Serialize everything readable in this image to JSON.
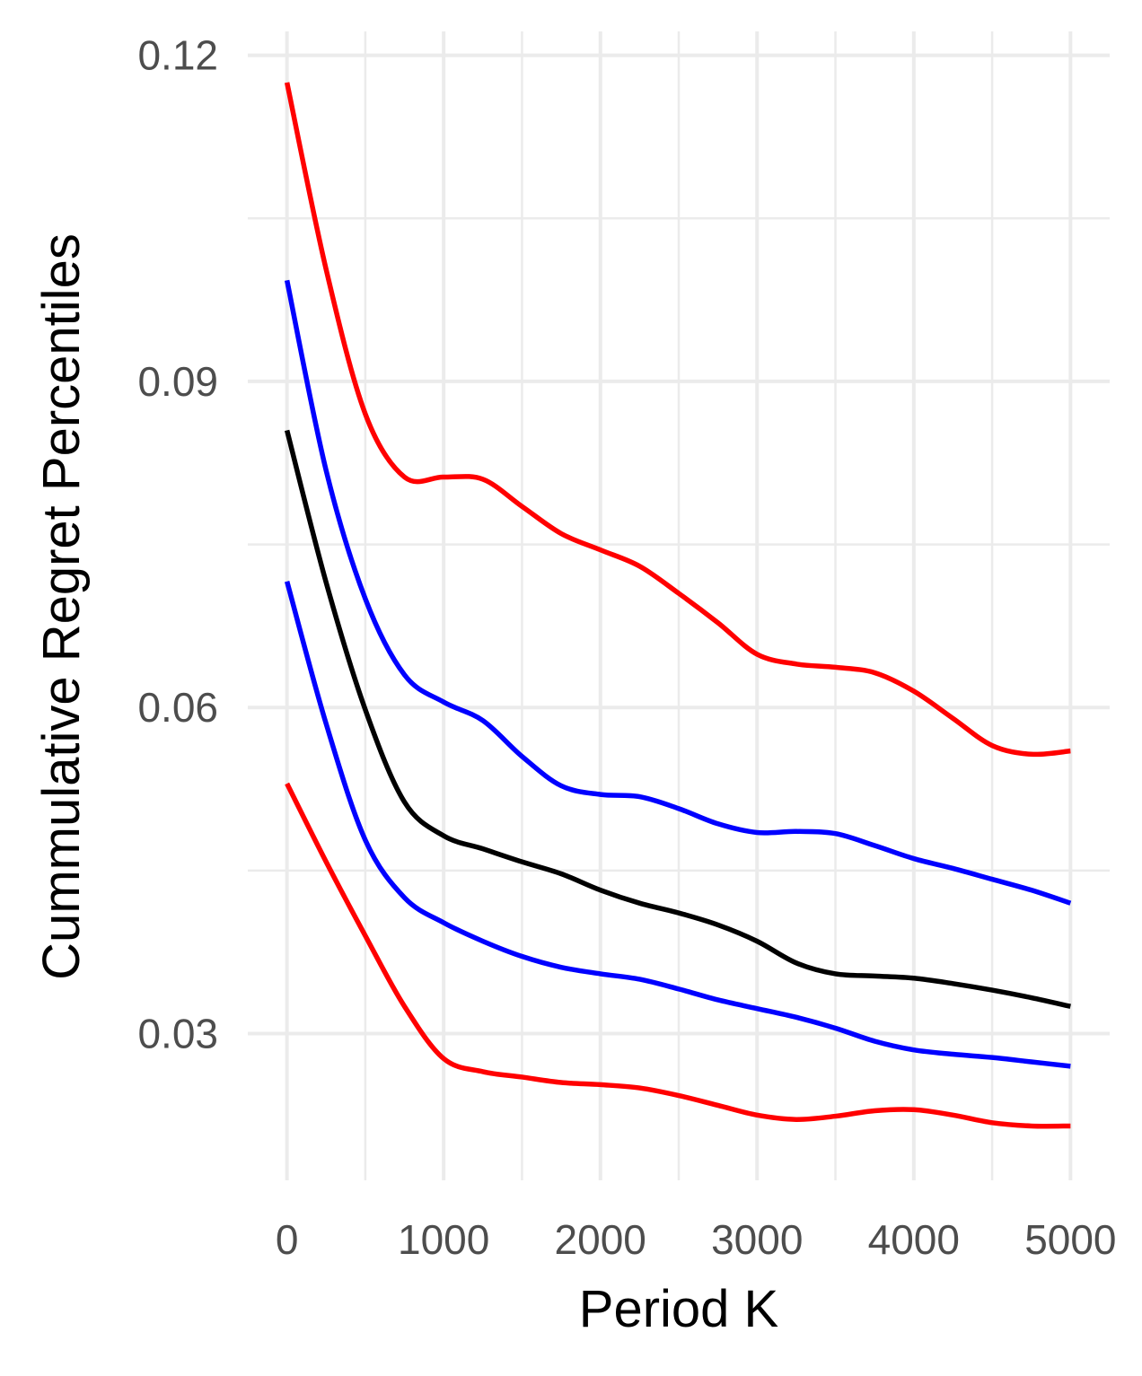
{
  "chart_data": {
    "type": "line",
    "title": "",
    "xlabel": "Period K",
    "ylabel": "Cummulative Regret Percentiles",
    "xlim": [
      -250,
      5250
    ],
    "ylim": [
      0.0165,
      0.1222
    ],
    "x_ticks": [
      0,
      1000,
      2000,
      3000,
      4000,
      5000
    ],
    "x_tick_labels": [
      "0",
      "1000",
      "2000",
      "3000",
      "4000",
      "5000"
    ],
    "x_minor_ticks": [
      500,
      1500,
      2500,
      3500,
      4500
    ],
    "y_ticks": [
      0.03,
      0.06,
      0.09,
      0.12
    ],
    "y_tick_labels": [
      "0.03",
      "0.06",
      "0.09",
      "0.12"
    ],
    "y_minor_ticks": [
      0.045,
      0.075,
      0.105
    ],
    "grid": true,
    "legend": "none",
    "x": [
      0,
      250,
      500,
      750,
      1000,
      1250,
      1500,
      1750,
      2000,
      2250,
      2500,
      2750,
      3000,
      3250,
      3500,
      3750,
      4000,
      4250,
      4500,
      4750,
      5000
    ],
    "series": [
      {
        "color": "#ff0000",
        "values": [
          0.1175,
          0.1003,
          0.087,
          0.0812,
          0.0812,
          0.081,
          0.0785,
          0.076,
          0.0745,
          0.073,
          0.0705,
          0.0678,
          0.0649,
          0.064,
          0.0637,
          0.0632,
          0.0615,
          0.059,
          0.0565,
          0.0557,
          0.056
        ]
      },
      {
        "color": "#0000ff",
        "values": [
          0.0993,
          0.0818,
          0.07,
          0.063,
          0.0605,
          0.0588,
          0.0555,
          0.0528,
          0.052,
          0.0518,
          0.0507,
          0.0493,
          0.0485,
          0.0486,
          0.0484,
          0.0473,
          0.0461,
          0.0452,
          0.0442,
          0.0432,
          0.042
        ]
      },
      {
        "color": "#000000",
        "values": [
          0.0855,
          0.0715,
          0.0598,
          0.0513,
          0.0482,
          0.047,
          0.0458,
          0.0447,
          0.0432,
          0.042,
          0.0411,
          0.04,
          0.0385,
          0.0365,
          0.0355,
          0.0353,
          0.0351,
          0.0346,
          0.034,
          0.0333,
          0.0325
        ]
      },
      {
        "color": "#0000ff",
        "values": [
          0.0716,
          0.0585,
          0.0478,
          0.0425,
          0.0402,
          0.0385,
          0.0371,
          0.0361,
          0.0355,
          0.035,
          0.0341,
          0.0331,
          0.0323,
          0.0315,
          0.0305,
          0.0293,
          0.0285,
          0.0281,
          0.0278,
          0.0274,
          0.027
        ]
      },
      {
        "color": "#ff0000",
        "values": [
          0.053,
          0.0458,
          0.039,
          0.0325,
          0.0277,
          0.0265,
          0.026,
          0.0255,
          0.0253,
          0.025,
          0.0243,
          0.0234,
          0.0225,
          0.0221,
          0.0224,
          0.0229,
          0.023,
          0.0225,
          0.0218,
          0.0215,
          0.0215
        ]
      }
    ]
  }
}
